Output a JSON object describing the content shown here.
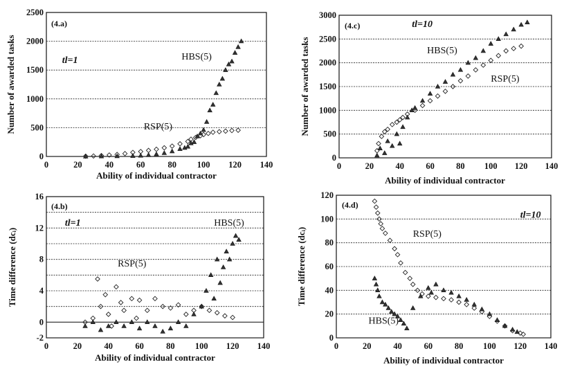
{
  "chart_data": [
    {
      "id": "4a",
      "type": "scatter",
      "tag": "(4.a)",
      "annotations": [
        {
          "text": "tl=1",
          "x": 10,
          "y": 1620,
          "style": "italic"
        },
        {
          "text": "HBS(5)",
          "x": 86,
          "y": 1680,
          "style": "normal"
        },
        {
          "text": "RSP(5)",
          "x": 62,
          "y": 470,
          "style": "normal"
        }
      ],
      "xlabel": "Ability of individual contractor",
      "ylabel": "Number of awarded tasks",
      "xlim": [
        0,
        140
      ],
      "ylim": [
        0,
        2500
      ],
      "xticks": [
        0,
        20,
        40,
        60,
        80,
        100,
        120,
        140
      ],
      "yticks": [
        0,
        500,
        1000,
        1500,
        2000,
        2500
      ],
      "grid": "horizontal",
      "series": [
        {
          "marker": "diamond",
          "points": [
            [
              25,
              5
            ],
            [
              30,
              8
            ],
            [
              35,
              15
            ],
            [
              40,
              25
            ],
            [
              45,
              35
            ],
            [
              50,
              50
            ],
            [
              55,
              70
            ],
            [
              60,
              85
            ],
            [
              65,
              105
            ],
            [
              70,
              125
            ],
            [
              75,
              150
            ],
            [
              80,
              180
            ],
            [
              85,
              220
            ],
            [
              90,
              260
            ],
            [
              92,
              300
            ],
            [
              95,
              330
            ],
            [
              98,
              360
            ],
            [
              100,
              380
            ],
            [
              103,
              400
            ],
            [
              106,
              420
            ],
            [
              110,
              430
            ],
            [
              114,
              440
            ],
            [
              118,
              450
            ],
            [
              122,
              455
            ]
          ]
        },
        {
          "marker": "triangle",
          "points": [
            [
              25,
              0
            ],
            [
              35,
              3
            ],
            [
              45,
              5
            ],
            [
              55,
              10
            ],
            [
              60,
              15
            ],
            [
              65,
              25
            ],
            [
              70,
              40
            ],
            [
              75,
              60
            ],
            [
              80,
              90
            ],
            [
              85,
              130
            ],
            [
              88,
              150
            ],
            [
              90,
              170
            ],
            [
              92,
              230
            ],
            [
              94,
              250
            ],
            [
              96,
              350
            ],
            [
              98,
              400
            ],
            [
              100,
              460
            ],
            [
              102,
              600
            ],
            [
              104,
              800
            ],
            [
              106,
              900
            ],
            [
              108,
              1100
            ],
            [
              110,
              1250
            ],
            [
              112,
              1350
            ],
            [
              114,
              1500
            ],
            [
              116,
              1600
            ],
            [
              118,
              1650
            ],
            [
              120,
              1800
            ],
            [
              122,
              1900
            ],
            [
              124,
              2000
            ]
          ]
        }
      ]
    },
    {
      "id": "4c",
      "type": "scatter",
      "tag": "(4.c)",
      "annotations": [
        {
          "text": "tl=10",
          "x": 48,
          "y": 2750,
          "style": "italic"
        },
        {
          "text": "HBS(5)",
          "x": 58,
          "y": 2200,
          "style": "normal"
        },
        {
          "text": "RSP(5)",
          "x": 100,
          "y": 1600,
          "style": "normal"
        }
      ],
      "xlabel": "Ability of individual contractor",
      "ylabel": "Number of awarded tasks",
      "xlim": [
        0,
        140
      ],
      "ylim": [
        0,
        3000
      ],
      "xticks": [
        0,
        20,
        40,
        60,
        80,
        100,
        120,
        140
      ],
      "yticks": [
        0,
        500,
        1000,
        1500,
        2000,
        2500,
        3000
      ],
      "grid": "horizontal",
      "series": [
        {
          "marker": "diamond",
          "points": [
            [
              25,
              150
            ],
            [
              26,
              300
            ],
            [
              28,
              450
            ],
            [
              30,
              550
            ],
            [
              32,
              600
            ],
            [
              35,
              700
            ],
            [
              38,
              750
            ],
            [
              40,
              800
            ],
            [
              42,
              850
            ],
            [
              45,
              920
            ],
            [
              50,
              1000
            ],
            [
              55,
              1100
            ],
            [
              60,
              1200
            ],
            [
              65,
              1300
            ],
            [
              70,
              1400
            ],
            [
              75,
              1500
            ],
            [
              80,
              1620
            ],
            [
              85,
              1720
            ],
            [
              90,
              1850
            ],
            [
              95,
              1950
            ],
            [
              100,
              2050
            ],
            [
              105,
              2150
            ],
            [
              110,
              2250
            ],
            [
              115,
              2300
            ],
            [
              120,
              2350
            ]
          ]
        },
        {
          "marker": "triangle",
          "points": [
            [
              25,
              50
            ],
            [
              27,
              200
            ],
            [
              30,
              100
            ],
            [
              32,
              350
            ],
            [
              35,
              250
            ],
            [
              38,
              500
            ],
            [
              40,
              300
            ],
            [
              42,
              650
            ],
            [
              45,
              850
            ],
            [
              48,
              1000
            ],
            [
              50,
              1050
            ],
            [
              55,
              1200
            ],
            [
              60,
              1350
            ],
            [
              65,
              1500
            ],
            [
              70,
              1600
            ],
            [
              75,
              1750
            ],
            [
              80,
              1850
            ],
            [
              85,
              2000
            ],
            [
              90,
              2100
            ],
            [
              95,
              2250
            ],
            [
              100,
              2400
            ],
            [
              105,
              2500
            ],
            [
              110,
              2600
            ],
            [
              115,
              2700
            ],
            [
              120,
              2800
            ],
            [
              124,
              2850
            ]
          ]
        }
      ]
    },
    {
      "id": "4b",
      "type": "scatter",
      "tag": "(4.b)",
      "annotations": [
        {
          "text": "tl=1",
          "x": 12,
          "y": 12.3,
          "style": "italic"
        },
        {
          "text": "HBS(5)",
          "x": 108,
          "y": 12.3,
          "style": "normal"
        },
        {
          "text": "RSP(5)",
          "x": 46,
          "y": 7.1,
          "style": "normal"
        }
      ],
      "xlabel": "Ability of individual contractor",
      "ylabel": "Time difference (dcᵢ)",
      "xlim": [
        0,
        140
      ],
      "ylim": [
        -2,
        16
      ],
      "xticks": [
        0,
        20,
        40,
        60,
        80,
        100,
        120,
        140
      ],
      "yticks": [
        -2,
        0,
        4,
        8,
        12,
        16
      ],
      "gridlines": [
        -2,
        0,
        2,
        4,
        6,
        8,
        10,
        12,
        14,
        16
      ],
      "series": [
        {
          "marker": "diamond",
          "points": [
            [
              25,
              0
            ],
            [
              30,
              0.5
            ],
            [
              33,
              5.5
            ],
            [
              35,
              2
            ],
            [
              38,
              3.5
            ],
            [
              40,
              1
            ],
            [
              42,
              -0.5
            ],
            [
              45,
              4.5
            ],
            [
              48,
              2.5
            ],
            [
              50,
              1.5
            ],
            [
              55,
              3
            ],
            [
              58,
              0.5
            ],
            [
              60,
              2.8
            ],
            [
              65,
              1.5
            ],
            [
              70,
              3
            ],
            [
              75,
              2
            ],
            [
              80,
              1.8
            ],
            [
              85,
              2.2
            ],
            [
              90,
              1
            ],
            [
              95,
              1.5
            ],
            [
              100,
              2
            ],
            [
              105,
              1.5
            ],
            [
              110,
              1.2
            ],
            [
              115,
              0.8
            ],
            [
              120,
              0.6
            ]
          ]
        },
        {
          "marker": "triangle",
          "points": [
            [
              25,
              -0.5
            ],
            [
              30,
              0
            ],
            [
              35,
              -1
            ],
            [
              40,
              -0.5
            ],
            [
              45,
              0
            ],
            [
              50,
              -0.5
            ],
            [
              55,
              0
            ],
            [
              60,
              -0.8
            ],
            [
              65,
              0
            ],
            [
              70,
              -0.5
            ],
            [
              75,
              -1.2
            ],
            [
              80,
              -0.8
            ],
            [
              85,
              0
            ],
            [
              90,
              -0.5
            ],
            [
              95,
              1
            ],
            [
              100,
              2
            ],
            [
              103,
              4
            ],
            [
              106,
              6
            ],
            [
              108,
              3
            ],
            [
              110,
              8
            ],
            [
              112,
              5
            ],
            [
              114,
              7
            ],
            [
              116,
              9
            ],
            [
              118,
              8
            ],
            [
              120,
              10
            ],
            [
              122,
              11
            ],
            [
              124,
              10.5
            ]
          ]
        }
      ]
    },
    {
      "id": "4d",
      "type": "scatter",
      "tag": "(4.d)",
      "annotations": [
        {
          "text": "tl=10",
          "x": 120,
          "y": 101,
          "style": "italic"
        },
        {
          "text": "RSP(5)",
          "x": 50,
          "y": 85,
          "style": "normal"
        },
        {
          "text": "HBS(5)",
          "x": 21,
          "y": 12,
          "style": "normal"
        }
      ],
      "xlabel": "Ability of individual contractor",
      "ylabel": "Time difference (dcᵢ)",
      "xlim": [
        0,
        140
      ],
      "ylim": [
        0,
        120
      ],
      "xticks": [
        0,
        20,
        40,
        60,
        80,
        100,
        120,
        140
      ],
      "yticks": [
        0,
        20,
        40,
        60,
        80,
        100,
        120
      ],
      "grid": "horizontal",
      "series": [
        {
          "marker": "diamond",
          "points": [
            [
              25,
              115
            ],
            [
              26,
              110
            ],
            [
              27,
              105
            ],
            [
              28,
              100
            ],
            [
              29,
              96
            ],
            [
              30,
              92
            ],
            [
              32,
              88
            ],
            [
              35,
              82
            ],
            [
              38,
              75
            ],
            [
              40,
              70
            ],
            [
              42,
              63
            ],
            [
              45,
              55
            ],
            [
              48,
              50
            ],
            [
              50,
              45
            ],
            [
              53,
              40
            ],
            [
              56,
              37
            ],
            [
              60,
              35
            ],
            [
              65,
              34
            ],
            [
              70,
              33
            ],
            [
              75,
              32
            ],
            [
              80,
              30
            ],
            [
              85,
              28
            ],
            [
              90,
              25
            ],
            [
              95,
              22
            ],
            [
              100,
              18
            ],
            [
              105,
              14
            ],
            [
              110,
              10
            ],
            [
              115,
              6
            ],
            [
              120,
              4
            ],
            [
              122,
              3
            ]
          ]
        },
        {
          "marker": "triangle",
          "points": [
            [
              25,
              50
            ],
            [
              26,
              45
            ],
            [
              27,
              40
            ],
            [
              28,
              35
            ],
            [
              30,
              30
            ],
            [
              32,
              28
            ],
            [
              34,
              25
            ],
            [
              36,
              22
            ],
            [
              38,
              20
            ],
            [
              40,
              18
            ],
            [
              42,
              15
            ],
            [
              44,
              12
            ],
            [
              46,
              8
            ],
            [
              50,
              25
            ],
            [
              55,
              35
            ],
            [
              60,
              42
            ],
            [
              62,
              38
            ],
            [
              65,
              45
            ],
            [
              70,
              40
            ],
            [
              75,
              38
            ],
            [
              80,
              35
            ],
            [
              85,
              32
            ],
            [
              90,
              28
            ],
            [
              95,
              24
            ],
            [
              100,
              20
            ],
            [
              105,
              15
            ],
            [
              110,
              10
            ],
            [
              115,
              7
            ],
            [
              118,
              5
            ]
          ]
        }
      ]
    }
  ]
}
